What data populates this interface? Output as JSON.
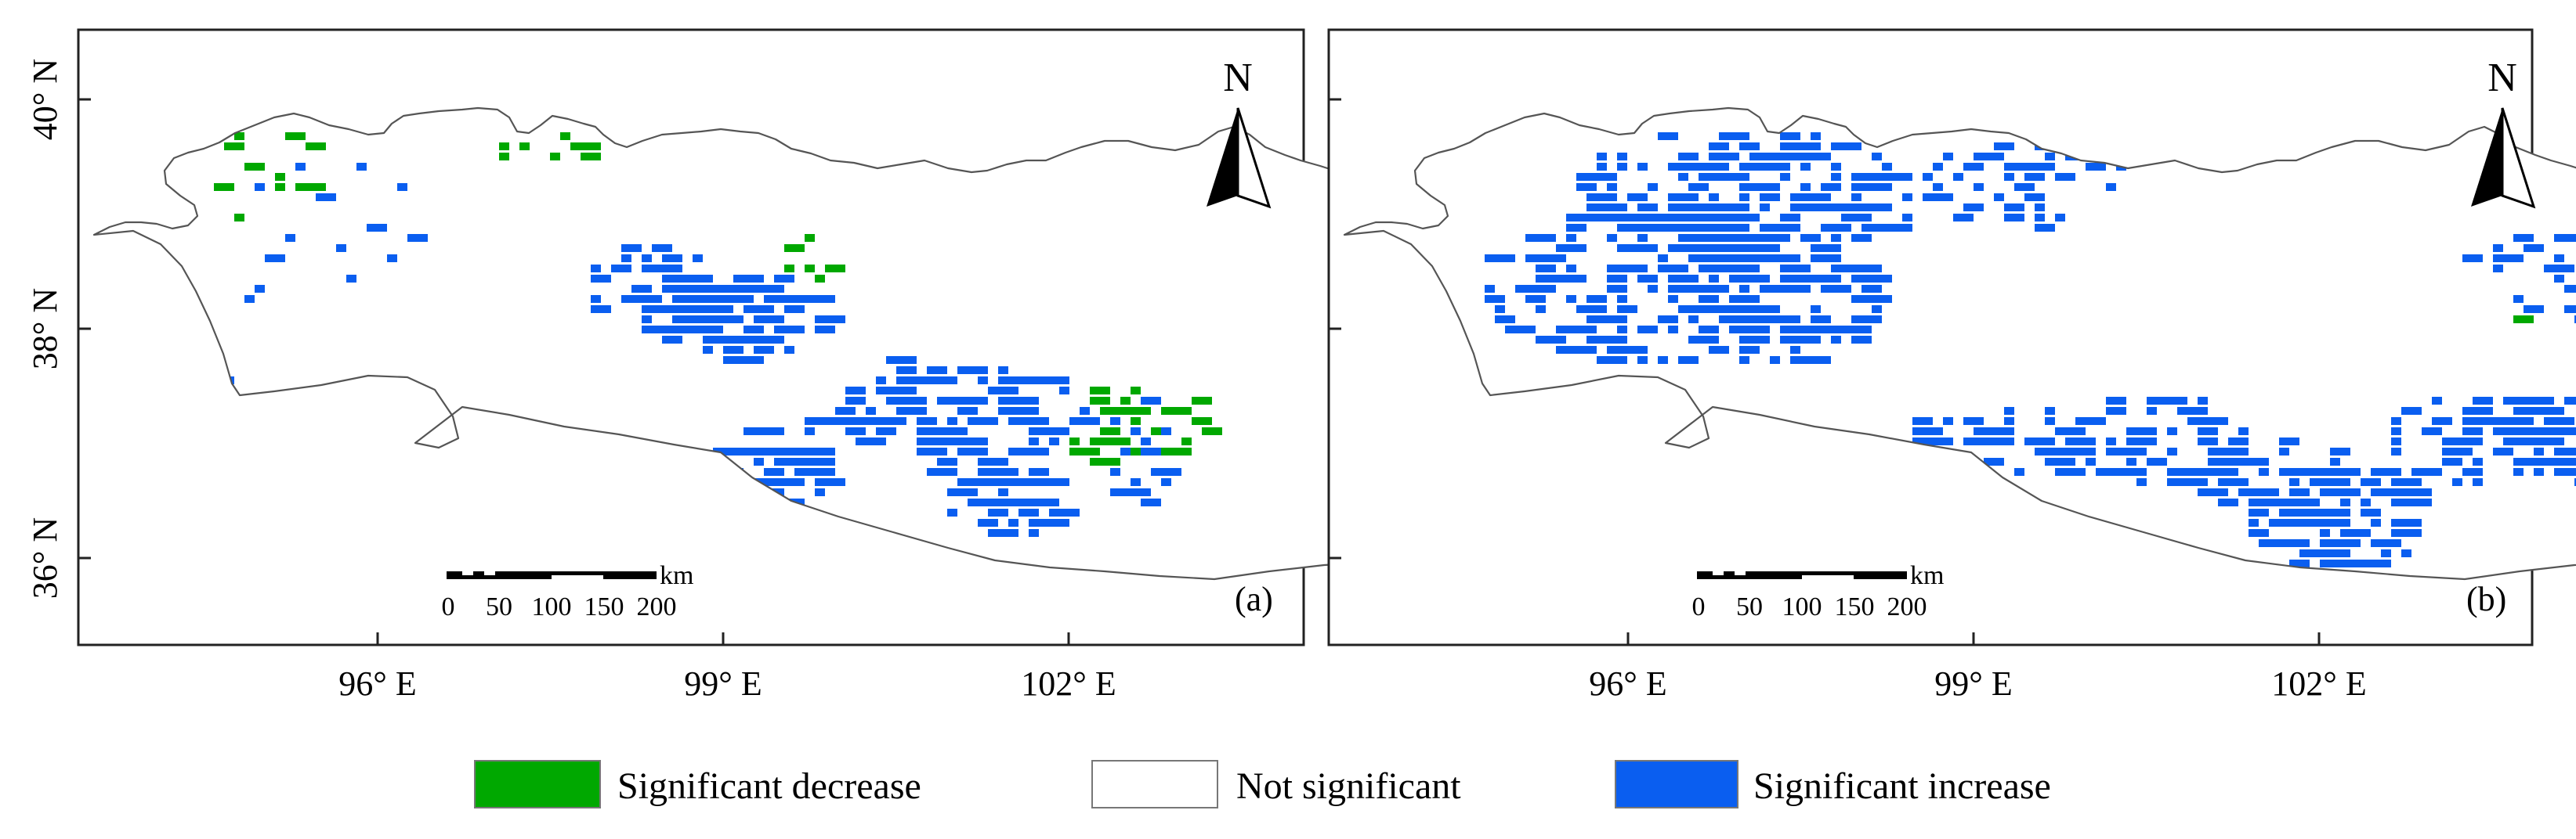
{
  "colors": {
    "decrease": "#00a800",
    "increase": "#0a5ef0",
    "not_significant": "#ffffff",
    "outline": "#555555"
  },
  "axes": {
    "lat_labels": [
      "40° N",
      "38° N",
      "36° N"
    ],
    "lon_labels": [
      "96° E",
      "99° E",
      "102° E"
    ]
  },
  "panels": [
    {
      "id": "a",
      "label": "(a)",
      "north": "N"
    },
    {
      "id": "b",
      "label": "(b)",
      "north": "N"
    }
  ],
  "scale_bar": {
    "unit": "km",
    "ticks": [
      "0",
      "50",
      "100",
      "150",
      "200"
    ]
  },
  "legend": {
    "items": [
      {
        "key": "decrease",
        "label": "Significant decrease"
      },
      {
        "key": "not_significant",
        "label": "Not significant"
      },
      {
        "key": "increase",
        "label": "Significant increase"
      }
    ]
  }
}
